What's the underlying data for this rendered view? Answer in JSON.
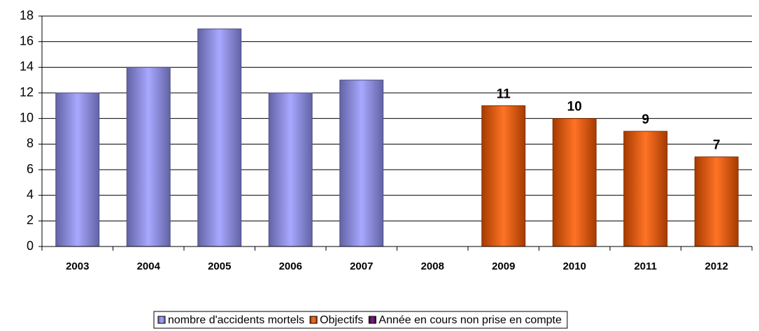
{
  "chart_data": {
    "type": "bar",
    "categories": [
      "2003",
      "2004",
      "2005",
      "2006",
      "2007",
      "2008",
      "2009",
      "2010",
      "2011",
      "2012"
    ],
    "series": [
      {
        "name": "nombre d'accidents mortels",
        "color": "#9999ff",
        "values": [
          12,
          14,
          17,
          12,
          13,
          null,
          null,
          null,
          null,
          null
        ]
      },
      {
        "name": "Objectifs",
        "color": "#ff5a00",
        "values": [
          null,
          null,
          null,
          null,
          null,
          null,
          11,
          10,
          9,
          7
        ],
        "data_labels": true
      },
      {
        "name": "Année en cours non prise en compte",
        "color": "#660066",
        "values": [
          null,
          null,
          null,
          null,
          null,
          null,
          null,
          null,
          null,
          null
        ]
      }
    ],
    "ylim": [
      0,
      18
    ],
    "yticks": [
      0,
      2,
      4,
      6,
      8,
      10,
      12,
      14,
      16,
      18
    ],
    "grid": true,
    "legend": "bottom"
  }
}
